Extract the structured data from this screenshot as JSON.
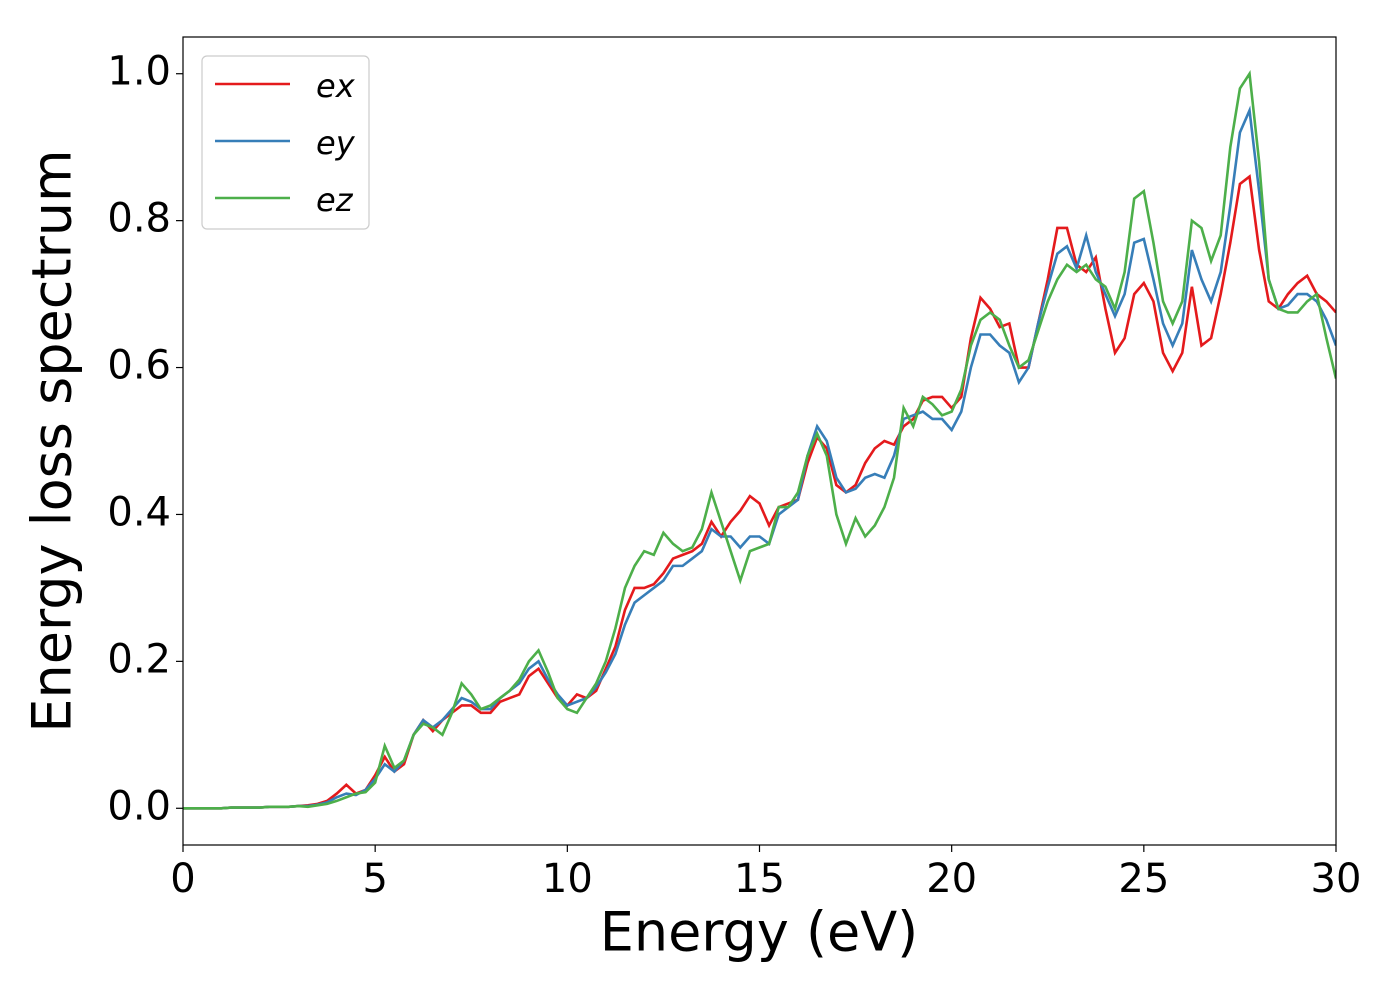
{
  "chart_data": {
    "type": "line",
    "x_label": "Energy (eV)",
    "y_label": "Energy loss spectrum",
    "x": [
      0,
      0.25,
      0.5,
      0.75,
      1,
      1.25,
      1.5,
      1.75,
      2,
      2.25,
      2.5,
      2.75,
      3,
      3.25,
      3.5,
      3.75,
      4,
      4.25,
      4.5,
      4.75,
      5,
      5.25,
      5.5,
      5.75,
      6,
      6.25,
      6.5,
      6.75,
      7,
      7.25,
      7.5,
      7.75,
      8,
      8.25,
      8.5,
      8.75,
      9,
      9.25,
      9.5,
      9.75,
      10,
      10.25,
      10.5,
      10.75,
      11,
      11.25,
      11.5,
      11.75,
      12,
      12.25,
      12.5,
      12.75,
      13,
      13.25,
      13.5,
      13.75,
      14,
      14.25,
      14.5,
      14.75,
      15,
      15.25,
      15.5,
      15.75,
      16,
      16.25,
      16.5,
      16.75,
      17,
      17.25,
      17.5,
      17.75,
      18,
      18.25,
      18.5,
      18.75,
      19,
      19.25,
      19.5,
      19.75,
      20,
      20.25,
      20.5,
      20.75,
      21,
      21.25,
      21.5,
      21.75,
      22,
      22.25,
      22.5,
      22.75,
      23,
      23.25,
      23.5,
      23.75,
      24,
      24.25,
      24.5,
      24.75,
      25,
      25.25,
      25.5,
      25.75,
      26,
      26.25,
      26.5,
      26.75,
      27,
      27.25,
      27.5,
      27.75,
      28,
      28.25,
      28.5,
      28.75,
      29,
      29.25,
      29.5,
      29.75,
      30
    ],
    "series": [
      {
        "name": "ex",
        "color": "#e41a1c",
        "values": [
          0,
          0,
          0,
          0,
          0,
          0.001,
          0.001,
          0.001,
          0.001,
          0.002,
          0.002,
          0.002,
          0.003,
          0.004,
          0.006,
          0.01,
          0.02,
          0.032,
          0.02,
          0.025,
          0.045,
          0.07,
          0.05,
          0.06,
          0.1,
          0.12,
          0.105,
          0.12,
          0.13,
          0.14,
          0.14,
          0.13,
          0.13,
          0.145,
          0.15,
          0.155,
          0.18,
          0.19,
          0.17,
          0.15,
          0.14,
          0.155,
          0.15,
          0.16,
          0.19,
          0.22,
          0.27,
          0.3,
          0.3,
          0.305,
          0.32,
          0.34,
          0.345,
          0.35,
          0.36,
          0.39,
          0.37,
          0.39,
          0.405,
          0.425,
          0.415,
          0.385,
          0.41,
          0.415,
          0.42,
          0.47,
          0.505,
          0.49,
          0.44,
          0.43,
          0.44,
          0.47,
          0.49,
          0.5,
          0.495,
          0.52,
          0.53,
          0.555,
          0.56,
          0.56,
          0.545,
          0.56,
          0.64,
          0.695,
          0.68,
          0.655,
          0.66,
          0.6,
          0.6,
          0.66,
          0.72,
          0.79,
          0.79,
          0.74,
          0.73,
          0.75,
          0.68,
          0.62,
          0.64,
          0.7,
          0.715,
          0.69,
          0.62,
          0.595,
          0.62,
          0.71,
          0.63,
          0.64,
          0.7,
          0.77,
          0.85,
          0.86,
          0.76,
          0.69,
          0.68,
          0.7,
          0.715,
          0.725,
          0.7,
          0.69,
          0.675
        ]
      },
      {
        "name": "ey",
        "color": "#377eb8",
        "values": [
          0,
          0,
          0,
          0,
          0,
          0.001,
          0.001,
          0.001,
          0.001,
          0.002,
          0.002,
          0.002,
          0.003,
          0.003,
          0.005,
          0.008,
          0.015,
          0.02,
          0.018,
          0.025,
          0.04,
          0.06,
          0.05,
          0.065,
          0.1,
          0.12,
          0.11,
          0.12,
          0.135,
          0.15,
          0.145,
          0.135,
          0.135,
          0.15,
          0.16,
          0.17,
          0.19,
          0.2,
          0.175,
          0.155,
          0.14,
          0.145,
          0.15,
          0.165,
          0.185,
          0.21,
          0.25,
          0.28,
          0.29,
          0.3,
          0.31,
          0.33,
          0.33,
          0.34,
          0.35,
          0.38,
          0.37,
          0.37,
          0.355,
          0.37,
          0.37,
          0.36,
          0.4,
          0.41,
          0.42,
          0.48,
          0.52,
          0.5,
          0.45,
          0.43,
          0.435,
          0.45,
          0.455,
          0.45,
          0.48,
          0.53,
          0.535,
          0.54,
          0.53,
          0.53,
          0.515,
          0.54,
          0.6,
          0.645,
          0.645,
          0.63,
          0.62,
          0.58,
          0.6,
          0.66,
          0.71,
          0.755,
          0.765,
          0.735,
          0.78,
          0.73,
          0.7,
          0.67,
          0.7,
          0.77,
          0.775,
          0.72,
          0.66,
          0.63,
          0.66,
          0.76,
          0.72,
          0.69,
          0.73,
          0.82,
          0.92,
          0.95,
          0.84,
          0.72,
          0.68,
          0.685,
          0.7,
          0.7,
          0.69,
          0.665,
          0.63
        ]
      },
      {
        "name": "ez",
        "color": "#4daf4a",
        "values": [
          0,
          0,
          0,
          0,
          0,
          0.001,
          0.001,
          0.001,
          0.001,
          0.002,
          0.002,
          0.002,
          0.003,
          0.002,
          0.004,
          0.006,
          0.01,
          0.015,
          0.02,
          0.022,
          0.035,
          0.085,
          0.055,
          0.065,
          0.1,
          0.115,
          0.11,
          0.1,
          0.13,
          0.17,
          0.155,
          0.135,
          0.14,
          0.15,
          0.16,
          0.175,
          0.2,
          0.215,
          0.185,
          0.15,
          0.135,
          0.13,
          0.15,
          0.17,
          0.2,
          0.245,
          0.3,
          0.33,
          0.35,
          0.345,
          0.375,
          0.36,
          0.35,
          0.355,
          0.38,
          0.43,
          0.39,
          0.35,
          0.31,
          0.35,
          0.355,
          0.36,
          0.41,
          0.41,
          0.43,
          0.48,
          0.51,
          0.48,
          0.4,
          0.36,
          0.395,
          0.37,
          0.385,
          0.41,
          0.45,
          0.545,
          0.52,
          0.56,
          0.55,
          0.535,
          0.54,
          0.57,
          0.63,
          0.665,
          0.675,
          0.665,
          0.63,
          0.6,
          0.61,
          0.65,
          0.69,
          0.72,
          0.74,
          0.73,
          0.74,
          0.72,
          0.71,
          0.68,
          0.73,
          0.83,
          0.84,
          0.77,
          0.69,
          0.66,
          0.69,
          0.8,
          0.79,
          0.745,
          0.78,
          0.9,
          0.98,
          1.0,
          0.88,
          0.72,
          0.68,
          0.675,
          0.675,
          0.69,
          0.7,
          0.64,
          0.585
        ]
      }
    ],
    "xlim": [
      0,
      30
    ],
    "xticks": [
      0,
      5,
      10,
      15,
      20,
      25,
      30
    ],
    "ylim": [
      -0.05,
      1.05
    ],
    "yticks": [
      {
        "value": 0,
        "label": "0.0"
      },
      0.2,
      0.4,
      0.6,
      0.8,
      {
        "value": 1,
        "label": "1.0"
      }
    ],
    "legend": "upper left"
  }
}
